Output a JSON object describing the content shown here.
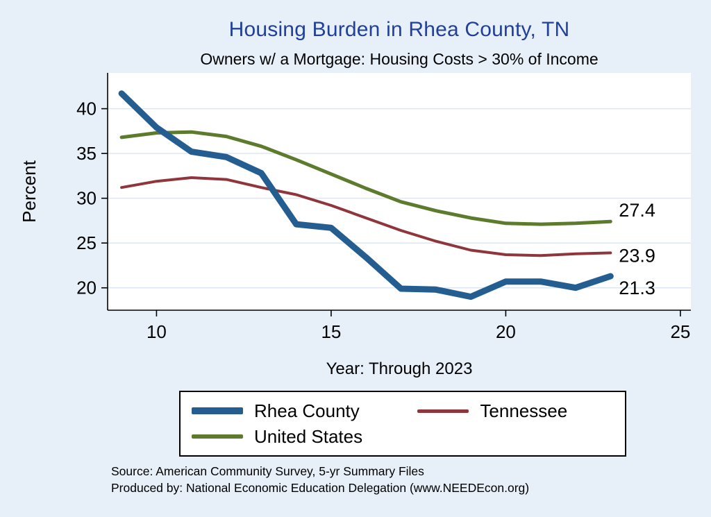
{
  "title": "Housing Burden in Rhea County, TN",
  "subtitle": "Owners w/ a Mortgage: Housing Costs > 30% of Income",
  "ylabel": "Percent",
  "xlabel": "Year: Through 2023",
  "source_line1": "Source: American Community Survey, 5-yr Summary Files",
  "source_line2": "Produced by: National Economic Education Delegation (www.NEEDEcon.org)",
  "colors": {
    "background": "#e7eff8",
    "plot_background": "#ffffff",
    "title": "#21409a",
    "axis": "#000000",
    "grid": "#dde7f2",
    "rhea": "#245e91",
    "tennessee": "#90353b",
    "us": "#5d7b2c"
  },
  "legend": {
    "items": [
      {
        "key": "rhea",
        "label": "Rhea County"
      },
      {
        "key": "tennessee",
        "label": "Tennessee"
      },
      {
        "key": "us",
        "label": "United States"
      }
    ]
  },
  "chart_data": {
    "type": "line",
    "title": "Housing Burden in Rhea County, TN",
    "subtitle": "Owners w/ a Mortgage: Housing Costs > 30% of Income",
    "xlabel": "Year: Through 2023",
    "ylabel": "Percent",
    "x": [
      9,
      10,
      11,
      12,
      13,
      14,
      15,
      16,
      17,
      18,
      19,
      20,
      21,
      22,
      23
    ],
    "series": [
      {
        "key": "us",
        "name": "United States",
        "values": [
          36.8,
          37.3,
          37.4,
          36.9,
          35.8,
          34.3,
          32.7,
          31.1,
          29.6,
          28.6,
          27.8,
          27.2,
          27.1,
          27.2,
          27.4
        ],
        "end_label": "27.4",
        "width": 5
      },
      {
        "key": "tennessee",
        "name": "Tennessee",
        "values": [
          31.2,
          31.9,
          32.3,
          32.1,
          31.2,
          30.4,
          29.2,
          27.8,
          26.4,
          25.2,
          24.2,
          23.7,
          23.6,
          23.8,
          23.9
        ],
        "end_label": "23.9",
        "width": 4
      },
      {
        "key": "rhea",
        "name": "Rhea County",
        "values": [
          41.7,
          37.9,
          35.2,
          34.6,
          32.8,
          27.1,
          26.7,
          23.4,
          19.9,
          19.8,
          19.0,
          20.7,
          20.7,
          20.0,
          21.3
        ],
        "end_label": "21.3",
        "width": 9
      }
    ],
    "x_ticks": [
      10,
      15,
      20,
      25
    ],
    "y_ticks": [
      20,
      25,
      30,
      35,
      40
    ],
    "xlim": [
      8.6,
      25.3
    ],
    "ylim": [
      17.5,
      44
    ],
    "grid": "horizontal",
    "legend_position": "bottom"
  }
}
